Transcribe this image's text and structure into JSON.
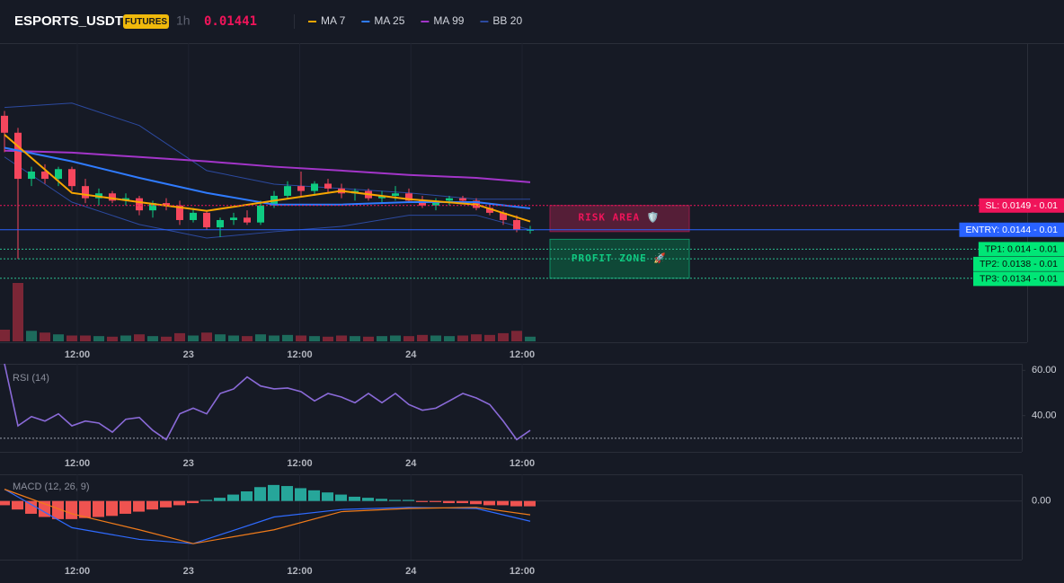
{
  "header": {
    "symbol": "ESPORTS_USDT",
    "badge": "FUTURES",
    "interval": "1h",
    "last_price": 0.01441,
    "legend": [
      {
        "name": "MA 7",
        "color": "#f7a600",
        "values": [
          0.01636,
          0.01516,
          0.01497,
          0.01479,
          0.015,
          0.0152,
          0.01503,
          0.01492,
          0.01457
        ]
      },
      {
        "name": "MA 25",
        "color": "#2f7bff",
        "values": [
          0.01609,
          0.01581,
          0.01547,
          0.01516,
          0.01492,
          0.01492,
          0.01497,
          0.01497,
          0.01484
        ]
      },
      {
        "name": "MA 99",
        "color": "#a335c9",
        "values": [
          0.01603,
          0.01599,
          0.0159,
          0.01581,
          0.0157,
          0.01562,
          0.01553,
          0.01547,
          0.01538
        ]
      },
      {
        "name": "BB 20",
        "color": "#2c4aa0",
        "upper": [
          0.01692,
          0.01701,
          0.01655,
          0.01562,
          0.01534,
          0.01525,
          0.01516,
          0.01503,
          0.01503
        ],
        "lower": [
          0.0159,
          0.01497,
          0.01451,
          0.01423,
          0.01436,
          0.01447,
          0.0147,
          0.0147,
          0.0144
        ]
      }
    ]
  },
  "time_labels": [
    "12:00",
    "23",
    "12:00",
    "24",
    "12:00"
  ],
  "main": {
    "ylim": [
      0.0121,
      0.01821
    ],
    "line_x": [
      0,
      5,
      10,
      15,
      20,
      25,
      30,
      35,
      39
    ],
    "candles": [
      [
        0.01675,
        0.01685,
        0.016,
        0.0164
      ],
      [
        0.0164,
        0.0165,
        0.0138,
        0.01545
      ],
      [
        0.01545,
        0.0157,
        0.0153,
        0.0156
      ],
      [
        0.0156,
        0.01575,
        0.01535,
        0.01545
      ],
      [
        0.01545,
        0.0157,
        0.0153,
        0.01565
      ],
      [
        0.01565,
        0.0157,
        0.0152,
        0.0153
      ],
      [
        0.0153,
        0.01545,
        0.01495,
        0.01505
      ],
      [
        0.01505,
        0.01525,
        0.0149,
        0.01515
      ],
      [
        0.01515,
        0.0152,
        0.01495,
        0.015
      ],
      [
        0.015,
        0.01515,
        0.0149,
        0.01505
      ],
      [
        0.01505,
        0.0151,
        0.0147,
        0.0148
      ],
      [
        0.0148,
        0.015,
        0.01465,
        0.01495
      ],
      [
        0.01495,
        0.01505,
        0.0148,
        0.0149
      ],
      [
        0.0149,
        0.015,
        0.0145,
        0.0146
      ],
      [
        0.0146,
        0.01485,
        0.01455,
        0.01475
      ],
      [
        0.01475,
        0.0148,
        0.0144,
        0.01445
      ],
      [
        0.01445,
        0.01465,
        0.01425,
        0.0146
      ],
      [
        0.0146,
        0.01475,
        0.0145,
        0.01465
      ],
      [
        0.01465,
        0.0148,
        0.0145,
        0.01455
      ],
      [
        0.01455,
        0.015,
        0.0145,
        0.0149
      ],
      [
        0.0149,
        0.0152,
        0.01485,
        0.0151
      ],
      [
        0.0151,
        0.0154,
        0.01505,
        0.0153
      ],
      [
        0.0153,
        0.0156,
        0.0151,
        0.0152
      ],
      [
        0.0152,
        0.0154,
        0.0151,
        0.01535
      ],
      [
        0.01535,
        0.01545,
        0.01515,
        0.01525
      ],
      [
        0.01525,
        0.01535,
        0.01505,
        0.01515
      ],
      [
        0.01515,
        0.01525,
        0.015,
        0.0152
      ],
      [
        0.0152,
        0.01525,
        0.015,
        0.01505
      ],
      [
        0.01505,
        0.0152,
        0.01495,
        0.0151
      ],
      [
        0.0151,
        0.0153,
        0.015,
        0.01515
      ],
      [
        0.01515,
        0.01525,
        0.01495,
        0.015
      ],
      [
        0.015,
        0.0151,
        0.01485,
        0.0149
      ],
      [
        0.0149,
        0.01505,
        0.0148,
        0.015
      ],
      [
        0.015,
        0.0151,
        0.0149,
        0.01505
      ],
      [
        0.01505,
        0.0151,
        0.01495,
        0.015
      ],
      [
        0.015,
        0.01505,
        0.0148,
        0.01485
      ],
      [
        0.01485,
        0.01495,
        0.0147,
        0.01475
      ],
      [
        0.01475,
        0.0148,
        0.0145,
        0.0146
      ],
      [
        0.0146,
        0.0147,
        0.01435,
        0.0144
      ],
      [
        0.01438,
        0.01448,
        0.01432,
        0.01441
      ]
    ],
    "volumes": [
      20,
      100,
      18,
      15,
      12,
      10,
      10,
      9,
      8,
      10,
      12,
      9,
      8,
      14,
      10,
      15,
      12,
      10,
      9,
      12,
      10,
      11,
      10,
      9,
      8,
      10,
      9,
      8,
      9,
      10,
      9,
      11,
      10,
      9,
      10,
      12,
      11,
      14,
      18,
      8
    ],
    "levels": [
      {
        "label": "SL: 0.0149 - 0.01",
        "price": 0.0149,
        "color": "#f0145a"
      },
      {
        "label": "ENTRY: 0.0144 - 0.01",
        "price": 0.0144,
        "color": "#2962ff"
      },
      {
        "label": "TP1: 0.014 - 0.01",
        "price": 0.014,
        "color": "#00e676"
      },
      {
        "label": "TP2: 0.0138 - 0.01",
        "price": 0.0138,
        "color": "#00e676"
      },
      {
        "label": "TP3: 0.0134 - 0.01",
        "price": 0.0134,
        "color": "#00e676"
      }
    ],
    "risk_label": "RISK AREA 🛡️",
    "profit_label": "PROFIT ZONE 🚀"
  },
  "rsi": {
    "title": "RSI (14)",
    "ylim": [
      24,
      62.9
    ],
    "yticks": [
      {
        "value": 60,
        "label": "60.00"
      },
      {
        "value": 40,
        "label": "40.00"
      }
    ],
    "guide": 30,
    "color": "#8a6ad8",
    "values": [
      62.9,
      35.5,
      39.6,
      37.6,
      40.8,
      35.5,
      37.6,
      36.7,
      32.7,
      38.4,
      39.2,
      33.5,
      29.4,
      40.8,
      43.3,
      40.8,
      49.8,
      51.8,
      57.1,
      53.1,
      51.8,
      52.2,
      50.6,
      46.5,
      49.8,
      48.2,
      45.7,
      49.8,
      45.7,
      49.8,
      44.9,
      42.4,
      43.3,
      46.5,
      49.8,
      47.8,
      44.9,
      37.6,
      29.4,
      33.5
    ]
  },
  "macd": {
    "title": "MACD (12, 26, 9)",
    "ylim": [
      -0.00055,
      0.00025
    ],
    "yticks": [
      {
        "value": 0,
        "label": "0.00"
      }
    ],
    "histogram": [
      -4e-05,
      -8e-05,
      -0.00012,
      -0.00015,
      -0.00017,
      -0.00017,
      -0.00016,
      -0.00015,
      -0.00014,
      -0.00012,
      -0.0001,
      -8e-05,
      -6e-05,
      -4e-05,
      -2e-05,
      1e-05,
      3e-05,
      6e-05,
      9e-05,
      0.00013,
      0.00015,
      0.00014,
      0.00012,
      0.0001,
      8e-05,
      6e-05,
      4e-05,
      3e-05,
      2e-05,
      1e-05,
      1e-05,
      -1e-05,
      -1e-05,
      -2e-05,
      -2e-05,
      -3e-05,
      -4e-05,
      -4e-05,
      -5e-05,
      -5e-05
    ],
    "line_x": [
      0,
      5,
      10,
      14,
      20,
      25,
      30,
      35,
      39
    ],
    "macd": [
      0.00011,
      -0.00025,
      -0.00036,
      -0.0004,
      -0.00015,
      -8e-05,
      -6e-05,
      -7e-05,
      -0.00019
    ],
    "signal": [
      0.00011,
      -0.00012,
      -0.00027,
      -0.0004,
      -0.00027,
      -0.0001,
      -7e-05,
      -6e-05,
      -0.00013
    ],
    "macd_color": "#2f6bff",
    "signal_color": "#f07b1a"
  }
}
